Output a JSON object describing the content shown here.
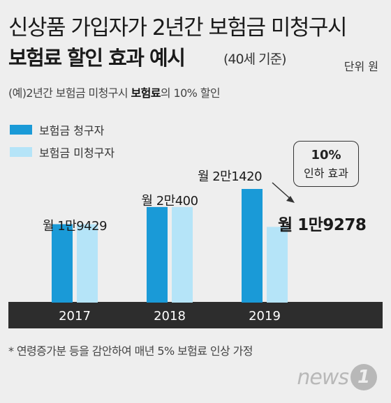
{
  "header": {
    "title_line1": "신상품 가입자가 2년간 보험금 미청구시",
    "title_line2": "보험료 할인 효과 예시",
    "title_note": "(40세 기준)",
    "unit": "단위 원"
  },
  "example": {
    "prefix": "(예)2년간 보험금 미청구시 ",
    "highlight": "보험료",
    "suffix": "의 10% 할인"
  },
  "callout": {
    "percent": "10%",
    "text": "인하 효과"
  },
  "footnote": "* 연령증가분 등을 감안하여 매년 5% 보험료 인상 가정",
  "logo": {
    "text": "news",
    "badge": "1"
  },
  "colors": {
    "claimant": "#1a9ad7",
    "non_claimant": "#b5e4f8",
    "axis_bar": "#2d2d2d",
    "axis_text": "#ffffff"
  },
  "chart_data": {
    "type": "bar",
    "categories": [
      "2017",
      "2018",
      "2019"
    ],
    "series": [
      {
        "name": "보험금 청구자",
        "values": [
          19429,
          20400,
          21420
        ]
      },
      {
        "name": "보험금 미청구자",
        "values": [
          19429,
          20400,
          19278
        ]
      }
    ],
    "data_labels": [
      "월 1만9429",
      "월 2만400",
      "월 2만1420",
      "월 1만9278"
    ],
    "ylim": [
      15000,
      21420
    ],
    "legend_position": "top-left",
    "grid": false
  }
}
